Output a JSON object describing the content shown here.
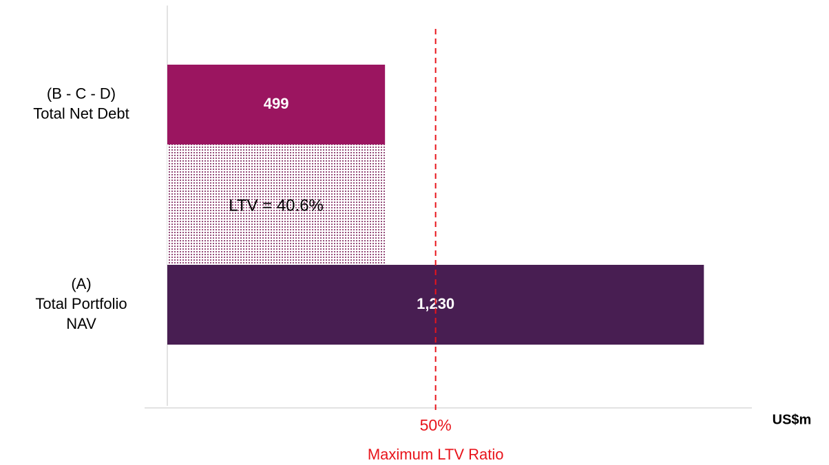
{
  "chart_data": {
    "type": "barh",
    "categories": [
      "(B - C - D)\nTotal Net Debt",
      "(A)\nTotal Portfolio\nNAV"
    ],
    "values": [
      499,
      1230
    ],
    "value_labels": [
      "499",
      "1,230"
    ],
    "colors": [
      "#9b1560",
      "#481e52"
    ],
    "xlim": [
      0,
      1340
    ],
    "x_axis_label": "US$m",
    "ltv_annotation": "LTV = 40.6%",
    "reference_line": {
      "ratio": 50,
      "label": "50%",
      "caption": "Maximum LTV Ratio",
      "color": "#e8141b"
    }
  }
}
